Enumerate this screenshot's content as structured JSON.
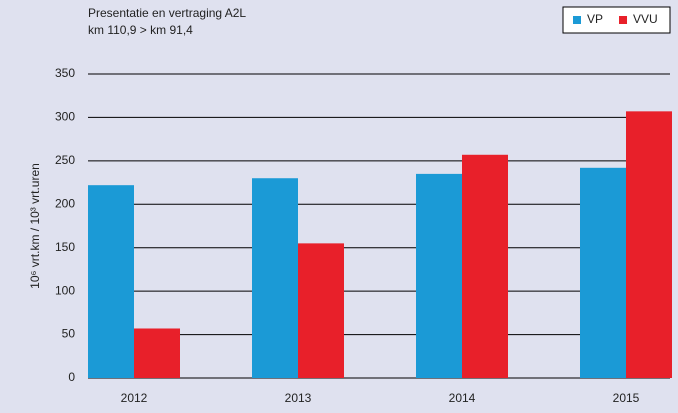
{
  "chart_data": {
    "type": "bar",
    "title": "Presentatie en vertraging A2L",
    "subtitle": "km 110,9 > km 91,4",
    "y_label": "10⁶ vrt.km / 10³ vrt.uren",
    "categories": [
      "2012",
      "2013",
      "2014",
      "2015"
    ],
    "series": [
      {
        "name": "VP",
        "color": "#1b9ad6",
        "values": [
          222,
          230,
          235,
          242
        ]
      },
      {
        "name": "VVU",
        "color": "#e8202a",
        "values": [
          57,
          155,
          257,
          307
        ]
      }
    ],
    "ylim": [
      0,
      350
    ],
    "yticks": [
      0,
      50,
      100,
      150,
      200,
      250,
      300,
      350
    ],
    "grid": true,
    "legend": "top-right"
  }
}
